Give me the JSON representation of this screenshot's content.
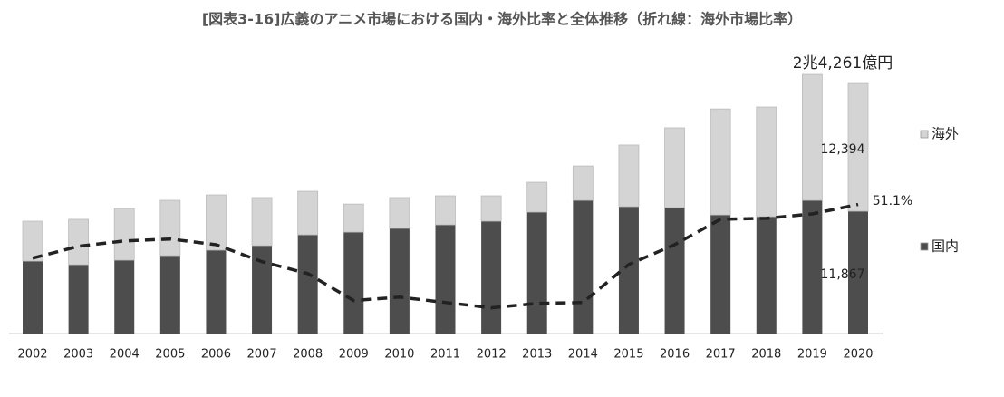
{
  "chart_data": {
    "type": "bar",
    "title": "[図表3-16]広義のアニメ市場における国内・海外比率と全体推移（折れ線：海外市場比率）",
    "annotations": [
      "2兆4,261億円"
    ],
    "categories": [
      "2002",
      "2003",
      "2004",
      "2005",
      "2006",
      "2007",
      "2008",
      "2009",
      "2010",
      "2011",
      "2012",
      "2013",
      "2014",
      "2015",
      "2016",
      "2017",
      "2018",
      "2019",
      "2020"
    ],
    "stacked": true,
    "ylim": [
      0,
      26200
    ],
    "y2lim": [
      10,
      96
    ],
    "series": [
      {
        "name": "国内",
        "color": "#4d4d4d",
        "values": [
          7030,
          6680,
          7120,
          7560,
          8090,
          8530,
          9580,
          9840,
          10200,
          10550,
          10900,
          11780,
          12920,
          12310,
          12220,
          11510,
          11340,
          12920,
          11867
        ],
        "value_labels": [
          null,
          null,
          null,
          null,
          null,
          null,
          null,
          null,
          null,
          null,
          null,
          null,
          null,
          null,
          null,
          null,
          null,
          null,
          "11,867"
        ]
      },
      {
        "name": "海外",
        "color": "#d4d4d4",
        "values": [
          3870,
          4400,
          5010,
          5360,
          5360,
          4660,
          4220,
          2720,
          2990,
          2810,
          2460,
          2900,
          3340,
          5980,
          7740,
          10280,
          10640,
          12220,
          12394
        ],
        "value_labels": [
          null,
          null,
          null,
          null,
          null,
          null,
          null,
          null,
          null,
          null,
          null,
          null,
          null,
          null,
          null,
          null,
          null,
          null,
          "12,394"
        ]
      },
      {
        "type": "line",
        "axis": "y2",
        "color": "#222222",
        "values": [
          34.0,
          37.8,
          39.5,
          40.1,
          38.3,
          32.9,
          29.1,
          20.5,
          21.6,
          19.9,
          18.2,
          19.6,
          19.9,
          32.0,
          38.3,
          46.4,
          46.7,
          48.1,
          51.1
        ],
        "value_labels": [
          null,
          null,
          null,
          null,
          null,
          null,
          null,
          null,
          null,
          null,
          null,
          null,
          null,
          null,
          null,
          null,
          null,
          null,
          "51.1%"
        ]
      }
    ]
  }
}
